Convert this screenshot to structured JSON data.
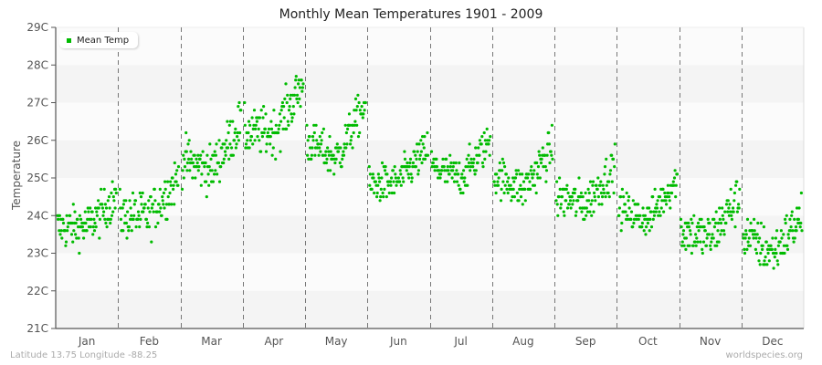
{
  "chart_data": {
    "type": "scatter",
    "title": "Monthly Mean Temperatures 1901 - 2009",
    "xlabel": "",
    "ylabel": "Temperature",
    "ylim": [
      21,
      29
    ],
    "y_ticks": [
      "21C",
      "22C",
      "23C",
      "24C",
      "25C",
      "26C",
      "27C",
      "28C",
      "29C"
    ],
    "categories": [
      "Jan",
      "Feb",
      "Mar",
      "Apr",
      "May",
      "Jun",
      "Jul",
      "Aug",
      "Sep",
      "Oct",
      "Nov",
      "Dec"
    ],
    "years": [
      1901,
      2009
    ],
    "legend": [
      {
        "label": "Mean Temp",
        "color": "#00bb00"
      }
    ],
    "legend_position": "top-left",
    "grid": {
      "horizontal_bands": true,
      "vertical_month_separators": "dashed"
    },
    "series": [
      {
        "name": "Mean Temp",
        "monthly_profiles": [
          {
            "month": "Jan",
            "start": 23.7,
            "mid": 23.7,
            "end": 24.5,
            "spread": 0.4
          },
          {
            "month": "Feb",
            "start": 24.0,
            "mid": 24.0,
            "end": 25.0,
            "spread": 0.45
          },
          {
            "month": "Mar",
            "start": 25.5,
            "mid": 25.2,
            "end": 26.5,
            "spread": 0.45
          },
          {
            "month": "Apr",
            "start": 26.2,
            "mid": 26.2,
            "end": 27.5,
            "spread": 0.45
          },
          {
            "month": "May",
            "start": 26.0,
            "mid": 25.5,
            "end": 27.0,
            "spread": 0.4
          },
          {
            "month": "Jun",
            "start": 24.8,
            "mid": 24.9,
            "end": 25.8,
            "spread": 0.35
          },
          {
            "month": "Jul",
            "start": 25.3,
            "mid": 25.0,
            "end": 26.0,
            "spread": 0.35
          },
          {
            "month": "Aug",
            "start": 25.1,
            "mid": 24.7,
            "end": 25.8,
            "spread": 0.4
          },
          {
            "month": "Sep",
            "start": 24.5,
            "mid": 24.3,
            "end": 25.3,
            "spread": 0.4
          },
          {
            "month": "Oct",
            "start": 24.2,
            "mid": 23.9,
            "end": 25.0,
            "spread": 0.35
          },
          {
            "month": "Nov",
            "start": 23.6,
            "mid": 23.4,
            "end": 24.5,
            "spread": 0.45
          },
          {
            "month": "Dec",
            "start": 23.5,
            "mid": 23.0,
            "end": 24.0,
            "spread": 0.45
          }
        ]
      }
    ]
  },
  "footer": {
    "location": "Latitude 13.75 Longitude -88.25",
    "source": "worldspecies.org"
  },
  "colors": {
    "point": "#00bb00",
    "band_light": "#fbfbfb",
    "band_dark": "#f4f4f4",
    "axis": "#555555",
    "separator": "#777777"
  }
}
